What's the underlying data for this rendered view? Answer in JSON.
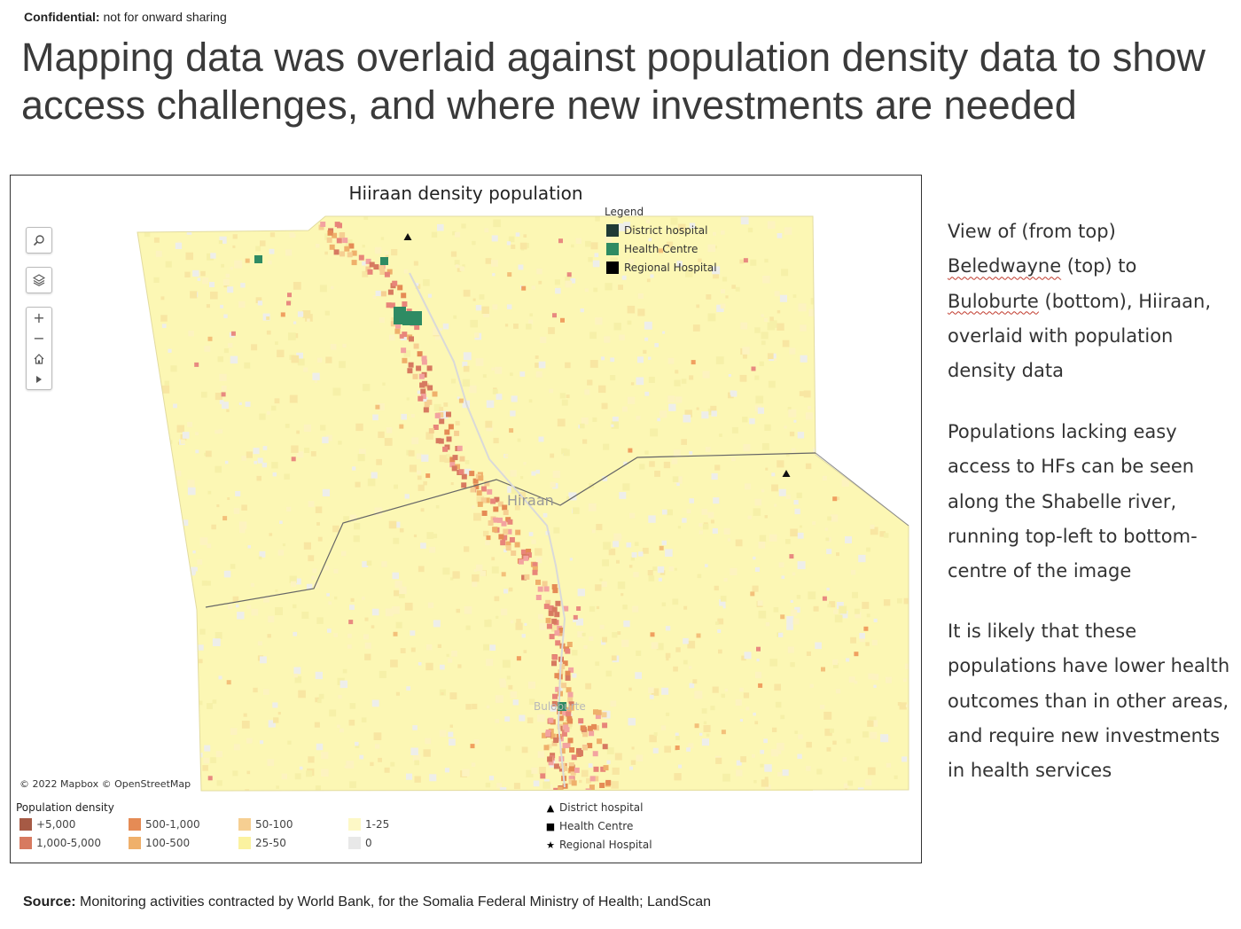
{
  "header": {
    "confidential_label": "Confidential:",
    "confidential_note": "not for onward sharing",
    "headline": "Mapping data was overlaid against population density data to show access challenges, and where new investments are needed"
  },
  "map": {
    "title": "Hiiraan density population",
    "place_labels": [
      "Hiraan",
      "Buloburte"
    ],
    "attribution": "© 2022 Mapbox  © OpenStreetMap",
    "legend_in_map": {
      "title": "Legend",
      "items": [
        {
          "label": "District hospital",
          "color": "#1f3a35"
        },
        {
          "label": "Health Centre",
          "color": "#2e8b63"
        },
        {
          "label": "Regional Hospital",
          "color": "#000000"
        }
      ]
    },
    "controls": {
      "search": "search-icon",
      "layers": "layers-icon",
      "zoom_in": "+",
      "zoom_out": "−",
      "home": "home-icon",
      "play": "play-icon"
    },
    "density_legend": {
      "title": "Population density",
      "items": [
        {
          "label": "+5,000",
          "color": "#a65a45"
        },
        {
          "label": "1,000-5,000",
          "color": "#d77a60"
        },
        {
          "label": "500-1,000",
          "color": "#e58b55"
        },
        {
          "label": "100-500",
          "color": "#efb06b"
        },
        {
          "label": "50-100",
          "color": "#f6cf92"
        },
        {
          "label": "25-50",
          "color": "#fbf2a0"
        },
        {
          "label": "1-25",
          "color": "#fdf8c6"
        },
        {
          "label": "0",
          "color": "#e8e8e8"
        }
      ]
    },
    "marker_legend": [
      {
        "symbol": "▲",
        "label": "District hospital"
      },
      {
        "symbol": "■",
        "label": "Health Centre"
      },
      {
        "symbol": "★",
        "label": "Regional Hospital"
      }
    ]
  },
  "side_text": {
    "p1_a": "View of (from top) ",
    "p1_b": "Beledwayne",
    "p1_c": " (top) to ",
    "p1_d": "Buloburte",
    "p1_e": " (bottom), Hiiraan, overlaid with population density data",
    "p2": "Populations lacking easy access to HFs can be seen along the Shabelle river, running top-left to bottom-centre of the image",
    "p3": "It is likely that these populations have lower health outcomes than in other areas, and require new investments in health services"
  },
  "footer": {
    "source_label": "Source:",
    "source_text": "Monitoring activities contracted by World Bank, for the Somalia Federal Ministry of Health; LandScan"
  }
}
